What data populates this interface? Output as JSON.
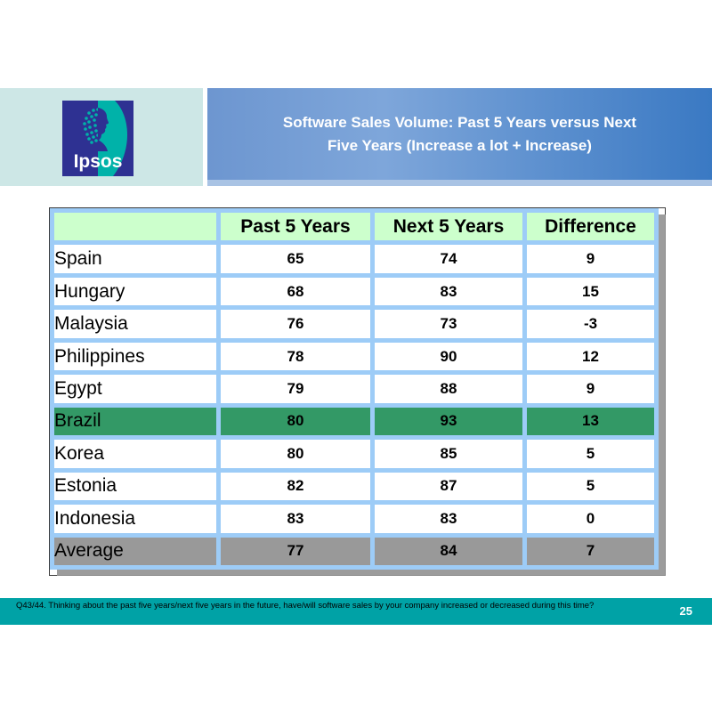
{
  "colors": {
    "band_mint": "#cde7e6",
    "logo_indigo": "#2e3192",
    "logo_teal": "#00b2a9",
    "title_bar_start": "#6d96d0",
    "title_bar_mid": "#7ea6da",
    "title_bar_end": "#3a79c3",
    "title_bar_bevel": "#a9c3e4",
    "table_border_blue": "#9dccf7",
    "table_outline": "#3c3c3c",
    "header_row_green": "#ccffcc",
    "highlight_green": "#339966",
    "average_gray": "#999999",
    "shadow_gray": "#919191",
    "footer_teal": "#00a2a6"
  },
  "header": {
    "logo_text": "Ipsos",
    "title_lines": [
      "Software Sales Volume: Past 5 Years versus Next",
      "Five Years (Increase a lot + Increase)"
    ]
  },
  "table": {
    "columns": [
      "",
      "Past 5 Years",
      "Next 5 Years",
      "Difference"
    ],
    "rows": [
      {
        "label": "Spain",
        "past": "65",
        "next": "74",
        "diff": "9",
        "style": "normal"
      },
      {
        "label": "Hungary",
        "past": "68",
        "next": "83",
        "diff": "15",
        "style": "normal"
      },
      {
        "label": "Malaysia",
        "past": "76",
        "next": "73",
        "diff": "-3",
        "style": "normal"
      },
      {
        "label": "Philippines",
        "past": "78",
        "next": "90",
        "diff": "12",
        "style": "normal"
      },
      {
        "label": "Egypt",
        "past": "79",
        "next": "88",
        "diff": "9",
        "style": "normal"
      },
      {
        "label": "Brazil",
        "past": "80",
        "next": "93",
        "diff": "13",
        "style": "highlight"
      },
      {
        "label": "Korea",
        "past": "80",
        "next": "85",
        "diff": "5",
        "style": "normal"
      },
      {
        "label": "Estonia",
        "past": "82",
        "next": "87",
        "diff": "5",
        "style": "normal"
      },
      {
        "label": "Indonesia",
        "past": "83",
        "next": "83",
        "diff": "0",
        "style": "normal"
      },
      {
        "label": "Average",
        "past": "77",
        "next": "84",
        "diff": "7",
        "style": "average"
      }
    ]
  },
  "footer": {
    "note": "Q43/44. Thinking about the past five years/next five years in the future, have/will software sales by your company increased or decreased during this time?",
    "page_number": "25"
  },
  "chart_data": {
    "type": "table",
    "title": "Software Sales Volume: Past 5 Years versus Next Five Years (Increase a lot + Increase)",
    "categories": [
      "Spain",
      "Hungary",
      "Malaysia",
      "Philippines",
      "Egypt",
      "Brazil",
      "Korea",
      "Estonia",
      "Indonesia",
      "Average"
    ],
    "series": [
      {
        "name": "Past 5 Years",
        "values": [
          65,
          68,
          76,
          78,
          79,
          80,
          80,
          82,
          83,
          77
        ]
      },
      {
        "name": "Next 5 Years",
        "values": [
          74,
          83,
          73,
          90,
          88,
          93,
          85,
          87,
          83,
          84
        ]
      },
      {
        "name": "Difference",
        "values": [
          9,
          15,
          -3,
          12,
          9,
          13,
          5,
          5,
          0,
          7
        ]
      }
    ],
    "highlighted_row": "Brazil",
    "footer_rows": [
      "Average"
    ]
  }
}
